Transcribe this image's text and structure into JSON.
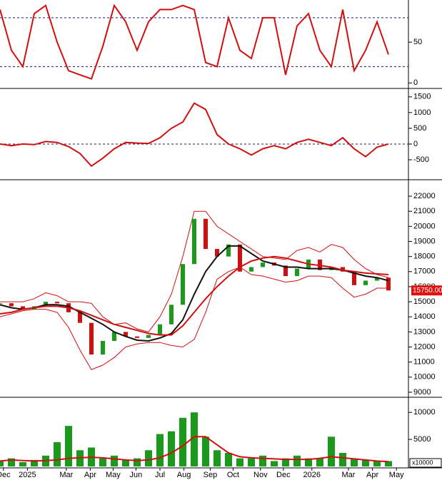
{
  "chart_data": [
    {
      "type": "line",
      "x": [
        0,
        1,
        2,
        3,
        4,
        5,
        6,
        7,
        8,
        9,
        10,
        11,
        12,
        13,
        14,
        15,
        16,
        17,
        18,
        19,
        20,
        21,
        22,
        23,
        24,
        25,
        26,
        27,
        28,
        29,
        30,
        31,
        32,
        33,
        34
      ],
      "xlim": [
        0,
        35.75
      ],
      "ylim": [
        -5,
        100
      ],
      "yticks": [
        0,
        50
      ],
      "levels": [
        20,
        80
      ],
      "series": [
        {
          "kind": "line",
          "color": "#d01010",
          "values": [
            90,
            40,
            20,
            85,
            95,
            50,
            15,
            10,
            5,
            45,
            95,
            75,
            40,
            75,
            90,
            90,
            95,
            90,
            25,
            20,
            80,
            40,
            30,
            80,
            80,
            10,
            70,
            85,
            40,
            20,
            90,
            15,
            40,
            75,
            35
          ]
        }
      ]
    },
    {
      "type": "line",
      "x": [
        0,
        1,
        2,
        3,
        4,
        5,
        6,
        7,
        8,
        9,
        10,
        11,
        12,
        13,
        14,
        15,
        16,
        17,
        18,
        19,
        20,
        21,
        22,
        23,
        24,
        25,
        26,
        27,
        28,
        29,
        30,
        31,
        32,
        33,
        34
      ],
      "xlim": [
        0,
        35.75
      ],
      "ylim": [
        -1090,
        1700
      ],
      "yticks": [
        -500,
        0,
        500,
        1000,
        1500
      ],
      "levels": [
        0
      ],
      "series": [
        {
          "kind": "line",
          "color": "#d01010",
          "values": [
            0,
            -50,
            0,
            -20,
            80,
            50,
            -80,
            -300,
            -700,
            -450,
            -150,
            50,
            30,
            20,
            200,
            500,
            700,
            1300,
            1100,
            300,
            0,
            -150,
            -350,
            -150,
            -50,
            -150,
            50,
            150,
            50,
            -50,
            200,
            -150,
            -400,
            -100,
            0
          ]
        }
      ]
    },
    {
      "type": "line",
      "x": [
        0,
        1,
        2,
        3,
        4,
        5,
        6,
        7,
        8,
        9,
        10,
        11,
        12,
        13,
        14,
        15,
        16,
        17,
        18,
        19,
        20,
        21,
        22,
        23,
        24,
        25,
        26,
        27,
        28,
        29,
        30,
        31,
        32,
        33,
        34
      ],
      "xlim": [
        0,
        35.75
      ],
      "ylim": [
        8760,
        22950
      ],
      "yticks": [
        9000,
        10000,
        11000,
        12000,
        13000,
        14000,
        15000,
        16000,
        17000,
        18000,
        19000,
        20000,
        21000,
        22000
      ],
      "last_price": {
        "value": 15750,
        "label": "15750.00"
      },
      "series": [
        {
          "kind": "band",
          "color": "#d01010",
          "values": [
            15000,
            15000,
            15000,
            15200,
            15600,
            15400,
            15000,
            15000,
            14900,
            14000,
            13500,
            13600,
            13200,
            13000,
            14000,
            15500,
            18000,
            21000,
            21000,
            20000,
            19500,
            19000,
            18500,
            18000,
            17900,
            17800,
            18400,
            18600,
            18300,
            18800,
            18600,
            17800,
            17200,
            16800,
            16600
          ]
        },
        {
          "kind": "band",
          "color": "#d01010",
          "values": [
            14000,
            14200,
            14400,
            14500,
            14500,
            14300,
            13300,
            11800,
            10500,
            10800,
            11300,
            12000,
            12200,
            12300,
            12300,
            12100,
            12000,
            12500,
            14300,
            16500,
            17000,
            17300,
            16800,
            16700,
            16500,
            16300,
            16400,
            16700,
            16700,
            16600,
            15900,
            15300,
            15500,
            15900,
            15900
          ]
        },
        {
          "kind": "candle",
          "color": "#1a9a1a",
          "values": [
            14900,
            14700,
            14500,
            14700,
            15000,
            14900,
            14300,
            13600,
            11500,
            12400,
            13000,
            12700,
            12600,
            12800,
            13500,
            14800,
            17500,
            20500,
            18500,
            18000,
            18800,
            17000,
            17300,
            17600,
            17400,
            16700,
            17200,
            17800,
            17100,
            17300,
            17000,
            16100,
            16400,
            16600,
            15750
          ]
        },
        {
          "kind": "line",
          "color": "#111111",
          "values": [
            14800,
            14600,
            14500,
            14600,
            14800,
            14800,
            14700,
            14300,
            13900,
            13500,
            13000,
            12700,
            12450,
            12400,
            12600,
            12900,
            13800,
            15500,
            17000,
            18000,
            18700,
            18700,
            18200,
            17700,
            17500,
            17300,
            17300,
            17200,
            17200,
            17200,
            17100,
            16900,
            16700,
            16600,
            16400
          ]
        },
        {
          "kind": "line",
          "color": "#d01010",
          "values": [
            14200,
            14300,
            14500,
            14600,
            14700,
            14700,
            14600,
            14400,
            14100,
            13800,
            13500,
            13300,
            13100,
            12900,
            12800,
            12800,
            13400,
            14300,
            15200,
            16000,
            16700,
            17300,
            17700,
            17900,
            18000,
            17900,
            17700,
            17500,
            17400,
            17300,
            17100,
            17000,
            16900,
            16850,
            16800
          ]
        }
      ]
    },
    {
      "type": "bar",
      "x": [
        0,
        1,
        2,
        3,
        4,
        5,
        6,
        7,
        8,
        9,
        10,
        11,
        12,
        13,
        14,
        15,
        16,
        17,
        18,
        19,
        20,
        21,
        22,
        23,
        24,
        25,
        26,
        27,
        28,
        29,
        30,
        31,
        32,
        33,
        34
      ],
      "xlim": [
        0,
        35.75
      ],
      "ylim": [
        0,
        12400
      ],
      "yticks": [
        5000,
        10000
      ],
      "unit_label": "x10000",
      "xticks": [
        {
          "value": 0.3,
          "label": "Dec"
        },
        {
          "value": 2.4,
          "label": "2025"
        },
        {
          "value": 5.8,
          "label": "Mar"
        },
        {
          "value": 7.9,
          "label": "Apr"
        },
        {
          "value": 9.9,
          "label": "May"
        },
        {
          "value": 11.9,
          "label": "Jun"
        },
        {
          "value": 14,
          "label": "Jul"
        },
        {
          "value": 16.1,
          "label": "Aug"
        },
        {
          "value": 18.4,
          "label": "Sep"
        },
        {
          "value": 20.4,
          "label": "Oct"
        },
        {
          "value": 22.8,
          "label": "Nov"
        },
        {
          "value": 24.8,
          "label": "Dec"
        },
        {
          "value": 27.3,
          "label": "2026"
        },
        {
          "value": 30.5,
          "label": "Mar"
        },
        {
          "value": 32.6,
          "label": "Apr"
        },
        {
          "value": 34.7,
          "label": "May"
        }
      ],
      "series": [
        {
          "kind": "bar",
          "color": "#1a9a1a",
          "values": [
            1000,
            1500,
            800,
            1200,
            2000,
            4500,
            7500,
            3000,
            3500,
            1500,
            2000,
            1200,
            1500,
            3000,
            6000,
            6500,
            9000,
            10000,
            5500,
            3000,
            2500,
            1500,
            1500,
            2000,
            1000,
            1500,
            2000,
            1500,
            1500,
            5500,
            2500,
            1500,
            1200,
            1000,
            1000
          ]
        },
        {
          "kind": "line",
          "color": "#d01010",
          "values": [
            1000,
            1200,
            1100,
            1000,
            1100,
            1200,
            1500,
            1600,
            1700,
            1600,
            1400,
            1200,
            1100,
            1200,
            1600,
            2500,
            3800,
            5500,
            5500,
            4000,
            2500,
            1800,
            1600,
            1500,
            1400,
            1300,
            1300,
            1300,
            1500,
            1800,
            1600,
            1400,
            1200,
            1000,
            900
          ]
        }
      ]
    }
  ]
}
